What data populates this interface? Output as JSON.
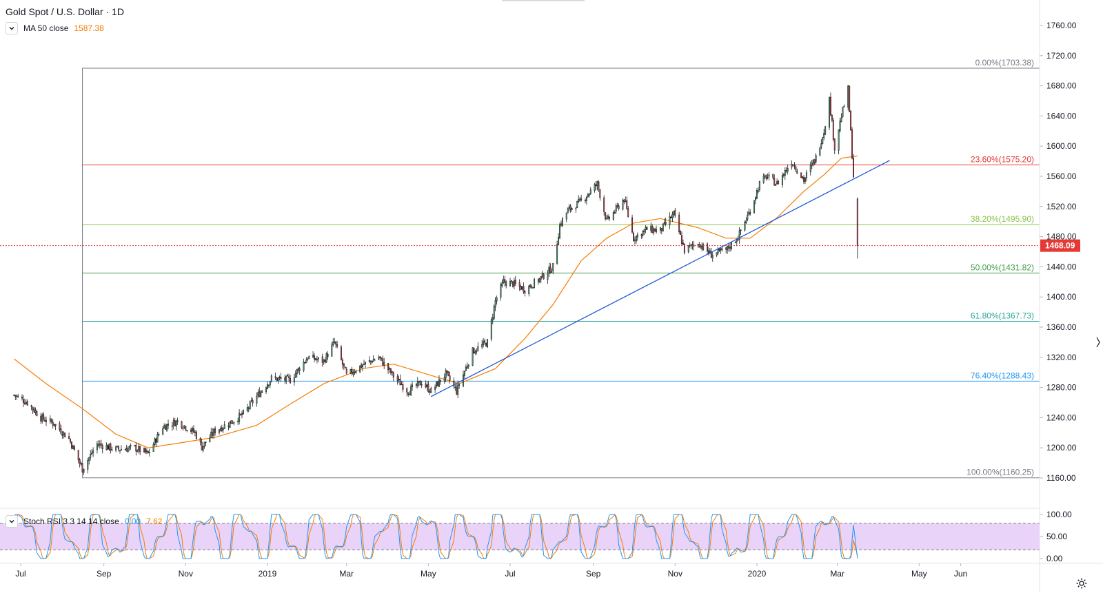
{
  "header": {
    "title": "Gold Spot / U.S. Dollar · 1D",
    "ma_label": "MA 50 close",
    "ma_value": "1587.38"
  },
  "oscillator": {
    "label": "Stoch RSI 3 3 14 14 close",
    "k_value": "0.00",
    "d_value": "7.62",
    "axis_labels": [
      "100.00",
      "50.00",
      "0.00"
    ],
    "upper_band": 80,
    "lower_band": 20
  },
  "colors": {
    "up": "#26a69a",
    "down": "#ef5350",
    "ma": "#f57c00",
    "trendline": "#1e5bd6",
    "rsi_k": "#2196f3",
    "rsi_d": "#f57c00",
    "rsi_band": "#e1c4f5",
    "price_tag": "#e53935"
  },
  "price_axis": {
    "labels": [
      "1760.00",
      "1720.00",
      "1680.00",
      "1640.00",
      "1600.00",
      "1560.00",
      "1520.00",
      "1480.00",
      "1440.00",
      "1400.00",
      "1360.00",
      "1320.00",
      "1280.00",
      "1240.00",
      "1200.00",
      "1160.00"
    ],
    "last_price": "1468.09"
  },
  "time_axis": {
    "labels": [
      "Jul",
      "Sep",
      "Nov",
      "2019",
      "Mar",
      "May",
      "Jul",
      "Sep",
      "Nov",
      "2020",
      "Mar",
      "May",
      "Jun"
    ]
  },
  "chart_data": {
    "type": "candlestick",
    "title": "Gold Spot / U.S. Dollar · 1D",
    "x_range": [
      "2018-06-26",
      "2020-06-30"
    ],
    "y_range": [
      1130,
      1780
    ],
    "last_close": 1468.09,
    "swing_low": {
      "date": "2018-08-16",
      "price": 1160.25
    },
    "swing_high": {
      "date": "2020-02-24",
      "price": 1703.38
    },
    "fibonacci": [
      {
        "label": "0.00%(1703.38)",
        "value": 1703.38,
        "color": "#787b86"
      },
      {
        "label": "23.60%(1575.20)",
        "value": 1575.2,
        "color": "#e53935"
      },
      {
        "label": "38.20%(1495.90)",
        "value": 1495.9,
        "color": "#8bc34a"
      },
      {
        "label": "50.00%(1431.82)",
        "value": 1431.82,
        "color": "#43a047"
      },
      {
        "label": "61.80%(1367.73)",
        "value": 1367.73,
        "color": "#26a69a"
      },
      {
        "label": "76.40%(1288.43)",
        "value": 1288.43,
        "color": "#2196f3"
      },
      {
        "label": "100.00%(1160.25)",
        "value": 1160.25,
        "color": "#787b86"
      }
    ],
    "trendline": {
      "from": {
        "date": "2019-05-03",
        "price": 1268
      },
      "to": {
        "date": "2020-04-09",
        "price": 1581
      }
    },
    "price_path": [
      [
        "2018-06-26",
        1270
      ],
      [
        "2018-07-06",
        1260
      ],
      [
        "2018-07-16",
        1240
      ],
      [
        "2018-07-26",
        1232
      ],
      [
        "2018-08-06",
        1212
      ],
      [
        "2018-08-16",
        1172
      ],
      [
        "2018-08-27",
        1205
      ],
      [
        "2018-09-10",
        1198
      ],
      [
        "2018-09-24",
        1200
      ],
      [
        "2018-10-04",
        1192
      ],
      [
        "2018-10-15",
        1228
      ],
      [
        "2018-10-26",
        1235
      ],
      [
        "2018-11-08",
        1220
      ],
      [
        "2018-11-13",
        1201
      ],
      [
        "2018-11-23",
        1223
      ],
      [
        "2018-12-03",
        1232
      ],
      [
        "2018-12-14",
        1245
      ],
      [
        "2018-12-24",
        1268
      ],
      [
        "2019-01-04",
        1292
      ],
      [
        "2019-01-18",
        1290
      ],
      [
        "2019-01-31",
        1320
      ],
      [
        "2019-02-12",
        1315
      ],
      [
        "2019-02-20",
        1340
      ],
      [
        "2019-03-01",
        1296
      ],
      [
        "2019-03-13",
        1310
      ],
      [
        "2019-03-25",
        1320
      ],
      [
        "2019-04-05",
        1295
      ],
      [
        "2019-04-16",
        1275
      ],
      [
        "2019-04-26",
        1287
      ],
      [
        "2019-05-03",
        1275
      ],
      [
        "2019-05-14",
        1298
      ],
      [
        "2019-05-22",
        1275
      ],
      [
        "2019-06-03",
        1328
      ],
      [
        "2019-06-14",
        1340
      ],
      [
        "2019-06-20",
        1395
      ],
      [
        "2019-06-26",
        1420
      ],
      [
        "2019-07-03",
        1418
      ],
      [
        "2019-07-12",
        1410
      ],
      [
        "2019-07-24",
        1425
      ],
      [
        "2019-08-02",
        1440
      ],
      [
        "2019-08-07",
        1495
      ],
      [
        "2019-08-13",
        1515
      ],
      [
        "2019-08-23",
        1527
      ],
      [
        "2019-09-04",
        1550
      ],
      [
        "2019-09-11",
        1500
      ],
      [
        "2019-09-24",
        1530
      ],
      [
        "2019-10-01",
        1478
      ],
      [
        "2019-10-11",
        1490
      ],
      [
        "2019-10-21",
        1488
      ],
      [
        "2019-10-31",
        1510
      ],
      [
        "2019-11-08",
        1462
      ],
      [
        "2019-11-18",
        1472
      ],
      [
        "2019-11-28",
        1456
      ],
      [
        "2019-12-09",
        1462
      ],
      [
        "2019-12-18",
        1480
      ],
      [
        "2019-12-27",
        1515
      ],
      [
        "2020-01-03",
        1550
      ],
      [
        "2020-01-08",
        1560
      ],
      [
        "2020-01-16",
        1550
      ],
      [
        "2020-01-27",
        1580
      ],
      [
        "2020-02-05",
        1555
      ],
      [
        "2020-02-14",
        1585
      ],
      [
        "2020-02-20",
        1620
      ],
      [
        "2020-02-24",
        1662
      ],
      [
        "2020-02-28",
        1598
      ],
      [
        "2020-03-04",
        1640
      ],
      [
        "2020-03-09",
        1675
      ],
      [
        "2020-03-13",
        1560
      ],
      [
        "2020-03-16",
        1468
      ]
    ],
    "ma50_path": [
      [
        "2018-06-26",
        1318
      ],
      [
        "2018-07-20",
        1285
      ],
      [
        "2018-08-16",
        1252
      ],
      [
        "2018-09-10",
        1218
      ],
      [
        "2018-10-04",
        1200
      ],
      [
        "2018-10-26",
        1206
      ],
      [
        "2018-11-23",
        1214
      ],
      [
        "2018-12-24",
        1230
      ],
      [
        "2019-01-18",
        1258
      ],
      [
        "2019-02-12",
        1285
      ],
      [
        "2019-03-13",
        1305
      ],
      [
        "2019-04-05",
        1311
      ],
      [
        "2019-05-03",
        1296
      ],
      [
        "2019-05-24",
        1285
      ],
      [
        "2019-06-20",
        1305
      ],
      [
        "2019-07-12",
        1345
      ],
      [
        "2019-08-02",
        1390
      ],
      [
        "2019-08-23",
        1448
      ],
      [
        "2019-09-11",
        1478
      ],
      [
        "2019-10-01",
        1498
      ],
      [
        "2019-10-21",
        1504
      ],
      [
        "2019-11-18",
        1492
      ],
      [
        "2019-12-09",
        1478
      ],
      [
        "2019-12-27",
        1478
      ],
      [
        "2020-01-16",
        1505
      ],
      [
        "2020-02-05",
        1540
      ],
      [
        "2020-02-20",
        1562
      ],
      [
        "2020-03-04",
        1584
      ],
      [
        "2020-03-16",
        1587
      ]
    ],
    "stoch_rsi": {
      "k_last": 0.0,
      "d_last": 7.62,
      "range": [
        0,
        100
      ],
      "bands": [
        20,
        80
      ]
    }
  }
}
